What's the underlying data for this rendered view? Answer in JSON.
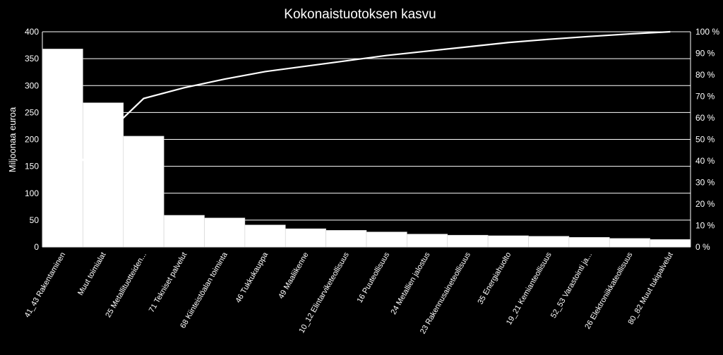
{
  "chart_data": {
    "type": "bar",
    "title": "Kokonaistuotoksen kasvu",
    "ylabel": "Miljoonaa euroa",
    "ylim": [
      0,
      400
    ],
    "yticks": [
      0,
      50,
      100,
      150,
      200,
      250,
      300,
      350,
      400
    ],
    "y2lim": [
      0,
      100
    ],
    "y2ticks": [
      "0 %",
      "10 %",
      "20 %",
      "30 %",
      "40 %",
      "50 %",
      "60 %",
      "70 %",
      "80 %",
      "90 %",
      "100 %"
    ],
    "grid": true,
    "categories": [
      "41_43 Rakentaminen",
      "Muut toimialat",
      "25 Metallituotteiden...",
      "71 Tekniset palvelut",
      "68 Kiinteistöalan toiminta",
      "46 Tukkukauppa",
      "49 Maaliikenne",
      "10_12 Elintarviketeollisuus",
      "16 Puuteollisuus",
      "24 Metallien jalostus",
      "23 Rakennusaineteollisuus",
      "35 Energiahuolto",
      "19_21 Kemianteollisuus",
      "52_53 Varastointi ja...",
      "26 Elektroniikkateollisuus",
      "80_82 Muut tukipalvelut"
    ],
    "series": [
      {
        "type": "bar",
        "values": [
          368,
          268,
          206,
          59,
          54,
          41,
          34,
          31,
          28,
          24,
          22,
          21,
          20,
          18,
          16,
          14
        ],
        "color": "#ffffff"
      },
      {
        "type": "line",
        "axis": "right",
        "values": [
          30,
          51,
          69,
          74,
          78,
          81.5,
          84,
          86.5,
          89,
          91,
          93,
          95,
          96.5,
          97.8,
          99,
          100
        ],
        "color": "#ffffff"
      }
    ]
  }
}
